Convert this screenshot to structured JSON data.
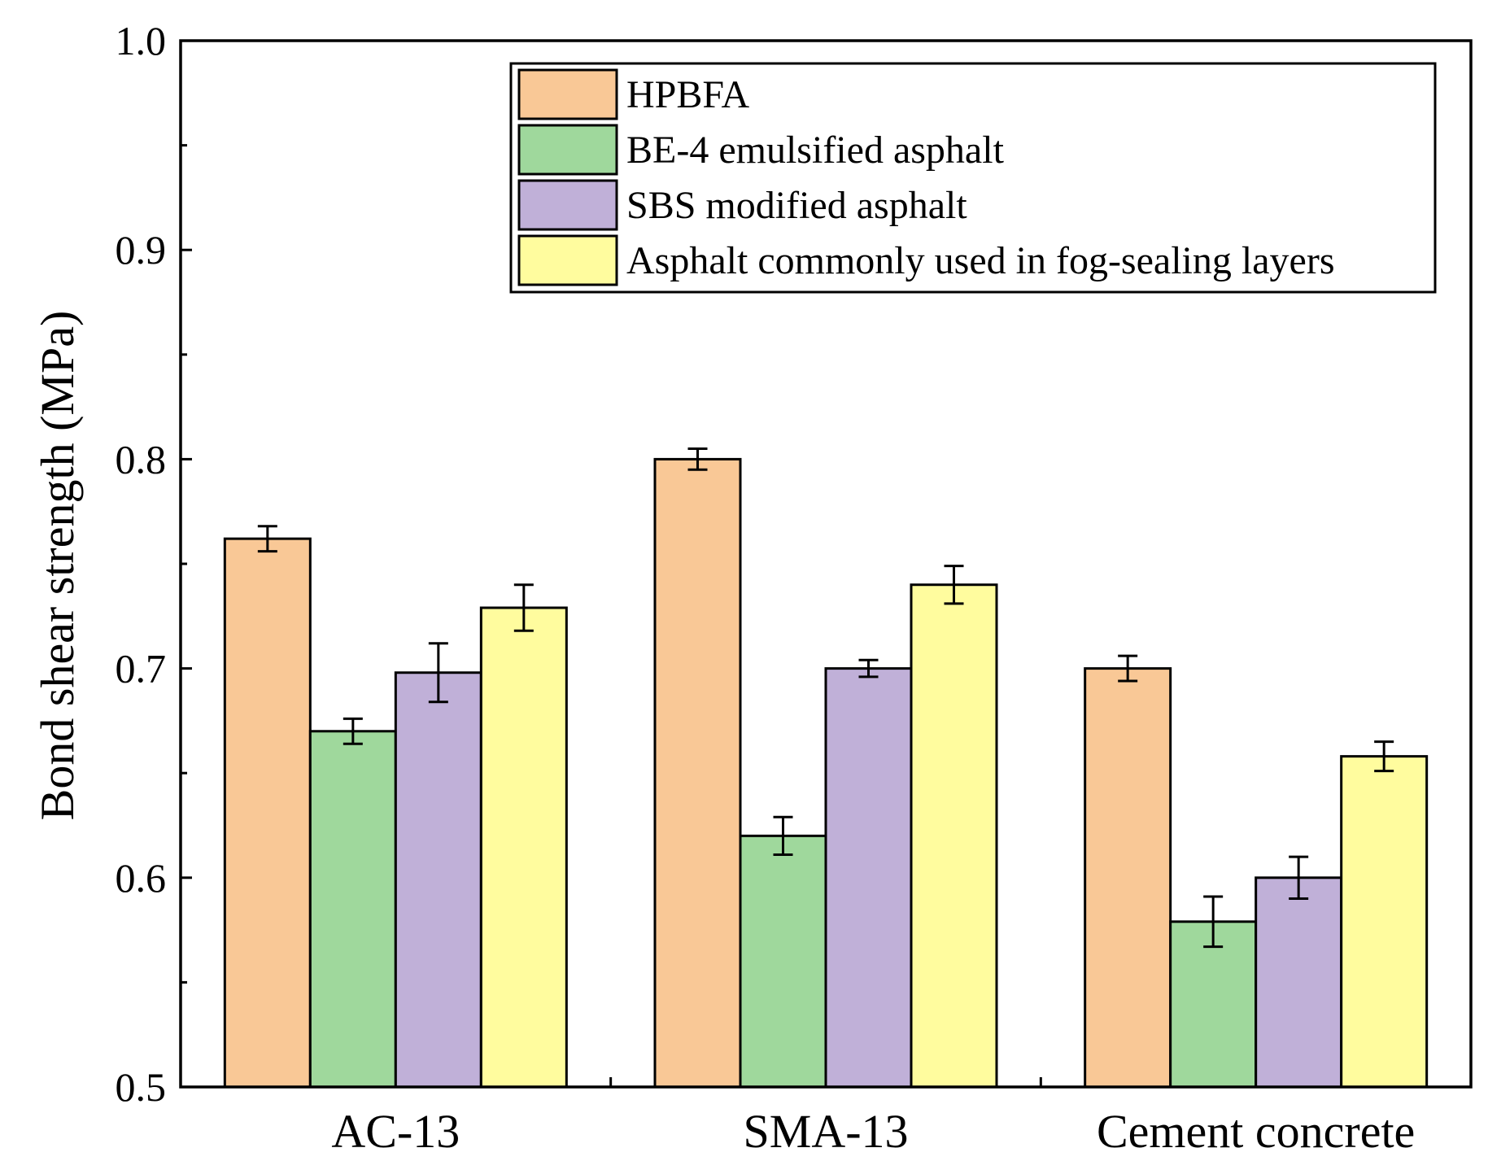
{
  "chart_data": {
    "type": "bar",
    "title": "",
    "xlabel": "",
    "ylabel": "Bond shear strength (MPa)",
    "ylim": [
      0.5,
      1.0
    ],
    "yticks": [
      "0.5",
      "0.6",
      "0.7",
      "0.8",
      "0.9",
      "1.0"
    ],
    "categories": [
      "AC-13",
      "SMA-13",
      "Cement concrete"
    ],
    "legend_position": "top-right",
    "series": [
      {
        "name": "HPBFA",
        "color": "#F9C896",
        "values": [
          0.762,
          0.8,
          0.7
        ],
        "errors": [
          0.006,
          0.005,
          0.006
        ]
      },
      {
        "name": "BE-4 emulsified asphalt",
        "color": "#9FD89C",
        "values": [
          0.67,
          0.62,
          0.579
        ],
        "errors": [
          0.006,
          0.009,
          0.012
        ]
      },
      {
        "name": "SBS modified asphalt",
        "color": "#C0B0D8",
        "values": [
          0.698,
          0.7,
          0.6
        ],
        "errors": [
          0.014,
          0.004,
          0.01
        ]
      },
      {
        "name": "Asphalt commonly used in fog-sealing layers",
        "color": "#FFFC9E",
        "values": [
          0.729,
          0.74,
          0.658
        ],
        "errors": [
          0.011,
          0.009,
          0.007
        ]
      }
    ]
  }
}
